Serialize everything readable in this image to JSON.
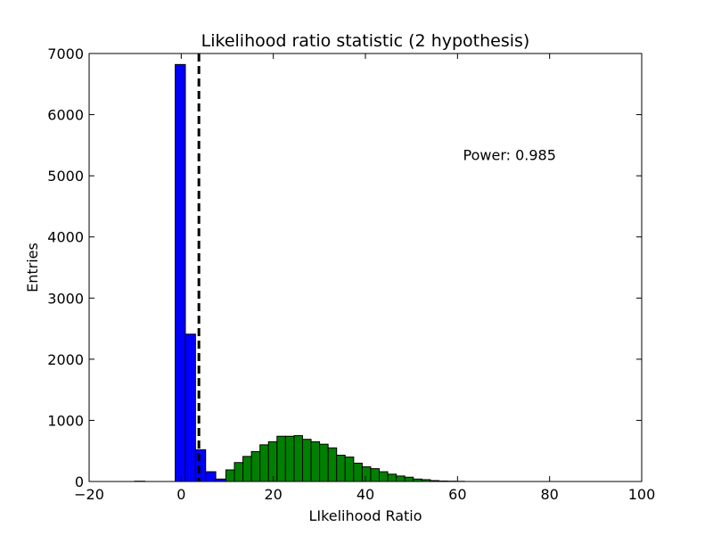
{
  "chart_data": {
    "type": "bar",
    "title": "Likelihood ratio statistic (2 hypothesis)",
    "xlabel": "LIkelihood Ratio",
    "ylabel": "Entries",
    "xlim": [
      -20,
      100
    ],
    "ylim": [
      0,
      7000
    ],
    "xticks": [
      -20,
      0,
      20,
      40,
      60,
      80,
      100
    ],
    "yticks": [
      0,
      1000,
      2000,
      3000,
      4000,
      5000,
      6000,
      7000
    ],
    "grid": false,
    "annotation": "Power: 0.985",
    "threshold_x": 3.84,
    "series": [
      {
        "color": "#0000ff",
        "bin_width": 2.2,
        "bins_start": [
          -10.1,
          -1.3,
          0.9,
          3.1,
          5.3,
          7.5
        ],
        "values": [
          5,
          6820,
          2410,
          520,
          160,
          40
        ]
      },
      {
        "color": "#008000",
        "bin_width": 1.85,
        "bins_start": [
          9.7,
          11.55,
          13.4,
          15.25,
          17.1,
          18.95,
          20.8,
          22.65,
          24.5,
          26.35,
          28.2,
          30.05,
          31.9,
          33.75,
          35.6,
          37.45,
          39.3,
          41.15,
          43.0,
          44.85,
          46.7,
          48.55,
          50.4,
          52.25,
          54.1,
          55.95,
          57.8,
          59.65
        ],
        "values": [
          190,
          310,
          410,
          490,
          600,
          650,
          740,
          740,
          750,
          690,
          650,
          610,
          550,
          430,
          400,
          300,
          240,
          210,
          160,
          120,
          90,
          70,
          40,
          30,
          15,
          8,
          5,
          3
        ]
      }
    ]
  }
}
